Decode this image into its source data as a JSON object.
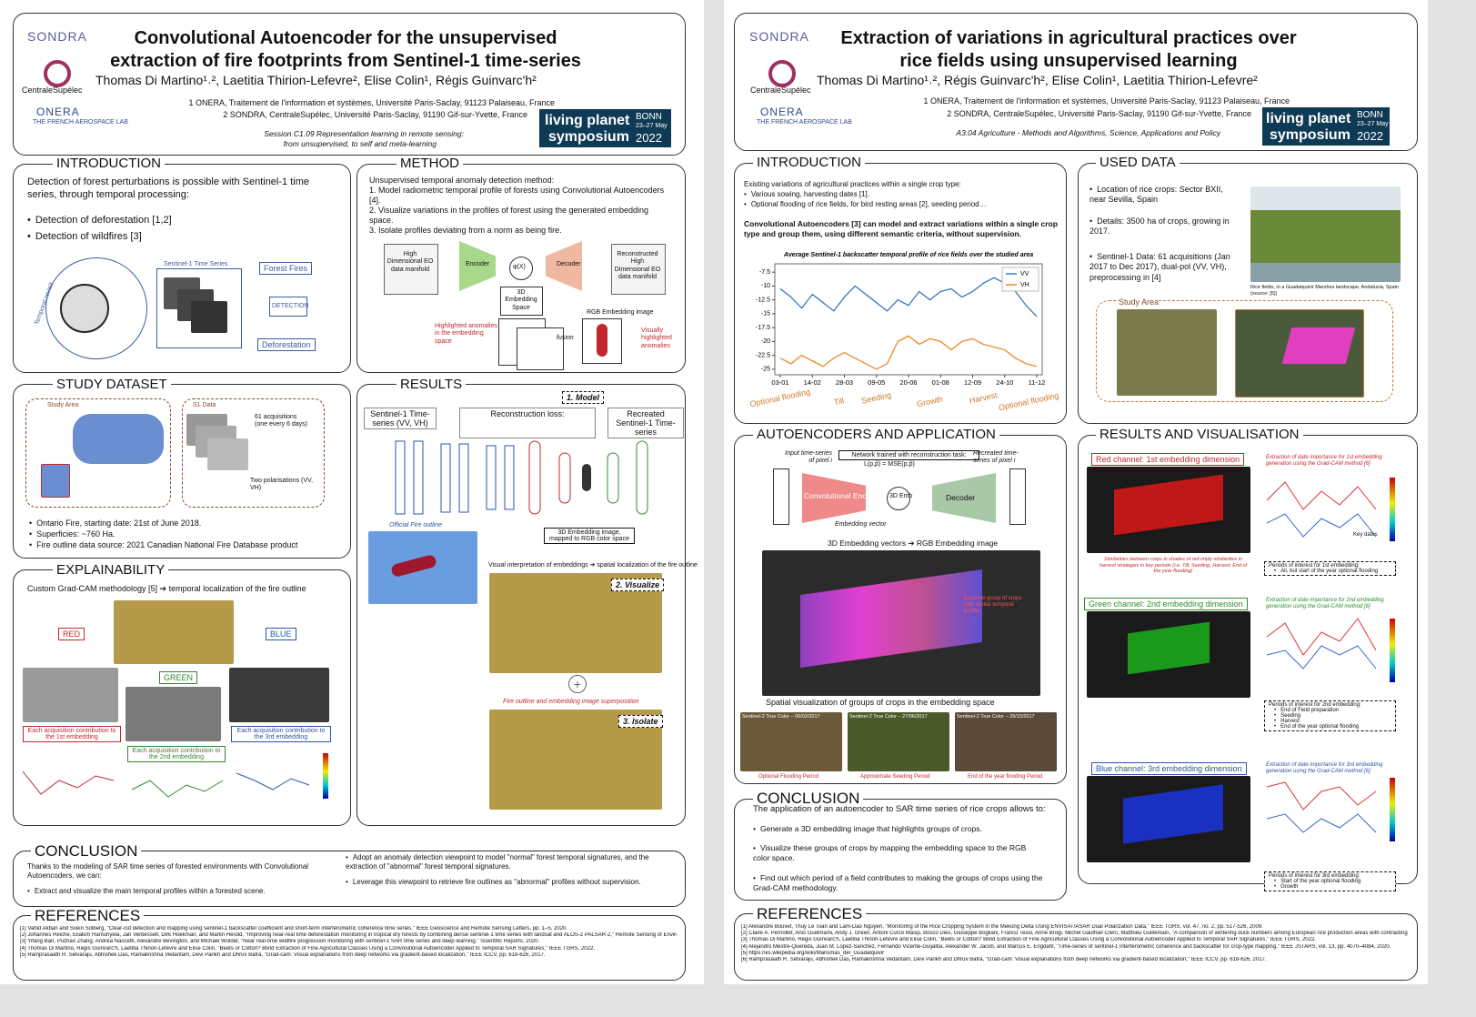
{
  "left": {
    "logos": [
      "SONDRA",
      "CentraleSupélec",
      "ONERA",
      "THE FRENCH AEROSPACE LAB"
    ],
    "title": [
      "Convolutional Autoencoder for the unsupervised",
      "extraction of fire footprints from Sentinel-1 time-series"
    ],
    "authors": "Thomas Di Martino¹˒², Laetitia Thirion-Lefevre², Elise Colin¹, Régis Guinvarc'h²",
    "affiliations": [
      "1 ONERA, Traitement de l'information et systèmes, Université Paris-Saclay, 91123 Palaiseau, France",
      "2 SONDRA, CentraleSupélec, Université Paris-Saclay, 91190 Gif-sur-Yvette, France"
    ],
    "session": [
      "Session C1.09 Representation learning in remote sensing:",
      "from unsupervised, to self and meta-learning"
    ],
    "badge": [
      "living planet",
      "symposium",
      "BONN",
      "23–27 May",
      "2022"
    ],
    "introduction": {
      "heading": "INTRODUCTION",
      "text": "Detection of forest perturbations is possible with Sentinel-1 time series, through temporal processing:",
      "bullets": [
        "Detection of deforestation [1,2]",
        "Detection of wildfires [3]"
      ],
      "figure": [
        "Sentinel-1 Time Series",
        "Forest Fires",
        "DETECTION",
        "Deforestation",
        "Temporal revisit"
      ]
    },
    "method": {
      "heading": "METHOD",
      "lines": [
        "Unsupervised temporal anomaly detection method:",
        "1. Model radiometric temporal profile of forests using Convolutional Autoencoders [4].",
        "2. Visualize variations in the profiles of forest using the generated embedding space.",
        "3. Isolate profiles deviating from a norm as being fire."
      ],
      "figure": [
        "High Dimensional EO data manifold",
        "Encoder",
        "φ(X)",
        "Decoder",
        "Reconstructed High Dimensional EO data manifold",
        "3D Embedding Space",
        "RGB Embedding image",
        "Highlighted anomalies in the embedding space",
        "fusion",
        "Visually highlighted anomalies"
      ]
    },
    "study_dataset": {
      "heading": "STUDY DATASET",
      "figure": [
        "Study Area",
        "S1 Data",
        "61 acquisitions (one every 6 days)",
        "Two polarisations (VV, VH)"
      ],
      "bullets": [
        "Ontario Fire, starting date: 21st of June 2018.",
        "Superficies: ~760 Ha.",
        "Fire outline data source: 2021 Canadian National Fire Database product"
      ]
    },
    "explainability": {
      "heading": "EXPLAINABILITY",
      "text": "Custom Grad-CAM methodology [5] ➔ temporal localization of the fire outline",
      "channels": [
        "RED",
        "GREEN",
        "BLUE"
      ],
      "captions": [
        "Each acquisition contribution to the 1st embedding",
        "Each acquisition contribution to the 2nd embedding",
        "Each acquisition contribution to the 3rd embedding"
      ]
    },
    "results": {
      "heading": "RESULTS",
      "steps": [
        "1. Model",
        "2. Visualize",
        "3. Isolate"
      ],
      "figure": [
        "Sentinel-1 Time-series (VV, VH)",
        "Reconstruction loss:",
        "Recreated Sentinel-1 Time-series",
        "Official Fire outline",
        "3D Embedding image, mapped to RGB color space",
        "Visual interpretation of embeddings ➔ spatial localization of the fire outline",
        "Fire outline and embedding image superposition"
      ]
    },
    "conclusion": {
      "heading": "CONCLUSION",
      "text": "Thanks to the modeling of SAR time series of forested environments with Convolutional Autoencoders, we can:",
      "bullets": [
        "Extract and visualize the main temporal profiles within a forested scene.",
        "Adopt an anomaly detection viewpoint to model \"normal\" forest temporal signatures, and the extraction of \"abnormal\" forest temporal signatures.",
        "Leverage this viewpoint to retrieve fire outlines as \"abnormal\" profiles without supervision."
      ]
    },
    "references": {
      "heading": "REFERENCES",
      "items": [
        "[1] Vahid Akbari and Svein Solberg, \"Clear-cut detection and mapping using sentinel-1 backscatter coefficient and short-term interferometric coherence time series,\" IEEE Geoscience and Remote Sensing Letters, pp. 1–5, 2020.",
        "[2] Johannes Reiche, Eliakim Hamunyela, Jan Verbesselt, Dirk Hoekman, and Martin Herold, \"Improving near-real time deforestation monitoring in tropical dry forests by combining dense sentinel-1 time series with landsat and ALOS-2 PALSAR-2,\" Remote Sensing of Environment, 2018.",
        "[3] Yifang Ban, Puzhao Zhang, Andrea Nascetti, Alexandre Bevington, and Michael Wulder, \"Near real-time wildfire progression monitoring with sentinel-1 SAR time series and deep learning,\" Scientific Reports, 2020.",
        "[4] Thomas Di Martino, Régis Guinvarc'h, Laetitia Thirion-Lefevre and Elise Colin, \"Beets or Cotton? Blind Extraction of Fine Agricultural Classes Using a Convolutional Autoencoder Applied to Temporal SAR Signatures,\" IEEE TGRS, 2022.",
        "[5] Ramprasaath R. Selvaraju, Abhishek Das, Ramakrishna Vedantam, Devi Parikh and Dhruv Batra, \"Grad-cam: Visual explanations from deep networks via gradient-based localization,\" IEEE ICCV, pp. 618-626, 2017."
      ]
    }
  },
  "right": {
    "logos": [
      "SONDRA",
      "CentraleSupélec",
      "ONERA",
      "THE FRENCH AEROSPACE LAB"
    ],
    "title": [
      "Extraction of variations in agricultural practices over",
      "rice fields using unsupervised learning"
    ],
    "authors": "Thomas Di Martino¹˒², Régis Guinvarc'h², Elise Colin¹, Laetitia Thirion-Lefevre²",
    "affiliations": [
      "1 ONERA, Traitement de l'information et systèmes, Université Paris-Saclay, 91123 Palaiseau, France",
      "2 SONDRA, CentraleSupélec, Université Paris-Saclay, 91190 Gif-sur-Yvette, France"
    ],
    "session": "A3.04 Agriculture - Methods and Algorithms, Science, Applications and Policy",
    "badge": [
      "living planet",
      "symposium",
      "BONN",
      "23–27 May",
      "2022"
    ],
    "introduction": {
      "heading": "INTRODUCTION",
      "text": "Existing variations of agricultural practices within a single crop type:",
      "bullets": [
        "Various sowing, harvesting dates [1].",
        "Optional flooding of rice fields, for bird resting areas [2], seeding period…"
      ],
      "paragraph": "Convolutional Autoencoders [3] can model and extract variations within a single crop type and group them, using different semantic criteria, without supervision.",
      "chart": {
        "type": "line",
        "title": "Average Sentinel-1 backscatter temporal profile of rice fields over the studied area",
        "categories": [
          "03-01",
          null,
          null,
          "14-02",
          null,
          null,
          "28-03",
          null,
          null,
          "09-05",
          null,
          null,
          "20-06",
          null,
          null,
          "01-08",
          null,
          null,
          "12-09",
          null,
          null,
          "24-10",
          null,
          null,
          "11-12"
        ],
        "series": [
          {
            "name": "VV",
            "color": "#3a78c2",
            "values": [
              -10.5,
              -12,
              -14,
              -11.5,
              -13,
              -14.5,
              -12,
              -10,
              -11.5,
              -13,
              -14.5,
              -12.5,
              -13.5,
              -11,
              -12.5,
              -11,
              -10.5,
              -12,
              -11,
              -9.5,
              -8.5,
              -9.5,
              -11,
              -13.5,
              -15.5
            ]
          },
          {
            "name": "VH",
            "color": "#f0882a",
            "values": [
              -23,
              -24,
              -22.5,
              -23.5,
              -24.5,
              -23,
              -22,
              -23,
              -24,
              -25,
              -24,
              -20,
              -19,
              -20.5,
              -19.5,
              -20,
              -21.5,
              -20,
              -19.5,
              -20.5,
              -21,
              -21.5,
              -23,
              -24,
              -24.5
            ]
          }
        ],
        "ylim": [
          -26,
          -6
        ],
        "yticks": [
          -7.5,
          -10,
          -12.5,
          -15,
          -17.5,
          -20,
          -22.5,
          -25
        ],
        "annotations": [
          "Optional flooding",
          "Till",
          "Seeding",
          "Growth",
          "Harvest",
          "Optional flooding"
        ],
        "legend": "top-right"
      }
    },
    "used_data": {
      "heading": "USED DATA",
      "bullets": [
        "Location of rice crops: Sector BXII, near Sevilla, Spain",
        "Details: 3500 ha of crops, growing in 2017.",
        "Sentinel-1 Data: 61 acquisitions (Jan 2017 to Dec 2017), dual-pol (VV, VH), preprocessing in [4]"
      ],
      "caption": "Rice fields, in a Guadalquivir Marshes landscape, Andalucia, Spain (source: [5])",
      "study_area": "Study Area"
    },
    "autoencoders": {
      "heading": "AUTOENCODERS AND APPLICATION",
      "figure": [
        "Network trained with reconstruction task:",
        "L(p,p̂) = MSE(p,p̂)",
        "Input time-series of pixel i",
        "Recreated time-series of pixel i",
        "Convolutional Encoder",
        "3D Emb",
        "Decoder",
        "Embedding vector",
        "3D Embedding vectors ➔ RGB Embedding image",
        "Example group of crops with similar temporal profiles"
      ],
      "caption": "Spatial visualization of groups of crops in the embedding space",
      "panels": [
        "Sentinel-2 True Color – 06/02/2017",
        "Sentinel-2 True Color – 27/06/2017",
        "Sentinel-2 True Color – 29/10/2017"
      ],
      "periods": [
        "Optional Flooding Period",
        "Approximate Seeding Period",
        "End of the year flooding Period"
      ]
    },
    "results": {
      "heading": "RESULTS AND VISUALISATION",
      "channels": [
        "Red channel: 1st embedding dimension",
        "Green channel: 2nd embedding dimension",
        "Blue channel: 3rd embedding dimension"
      ],
      "extraction": [
        "Extraction of date importance for 1st embedding generation using the Grad-CAM method [6]",
        "Extraction of date importance for 2nd embedding generation using the Grad-CAM method [6]",
        "Extraction of date importance for 3rd embedding generation using the Grad-CAM method [6]"
      ],
      "similarity": "Similarities between crops in shades of red imply similarities in harvest strategies in key periods (i.e. Till, Seeding, Harvest, End of the year flooding)",
      "periods": [
        {
          "title": "Periods of interest for 1st embedding:",
          "items": [
            "All, but start of the year optional flooding"
          ]
        },
        {
          "title": "Periods of interest for 2nd embedding:",
          "items": [
            "End of Field preparation",
            "Seeding",
            "Harvest",
            "End of the year optional flooding"
          ]
        },
        {
          "title": "Periods of interest for 3rd embedding:",
          "items": [
            "Start of the year optional flooding",
            "Growth"
          ]
        }
      ],
      "key_dates": "Key dates"
    },
    "conclusion": {
      "heading": "CONCLUSION",
      "text": "The application of an autoencoder to SAR time series of rice crops allows to:",
      "bullets": [
        "Generate a 3D embedding image that highlights groups of crops.",
        "Visualize these groups of crops by mapping the embedding space to the RGB color space.",
        "Find out which period of a field contributes to making the groups of crops using the Grad-CAM methodology."
      ]
    },
    "references": {
      "heading": "REFERENCES",
      "items": [
        "[1] Alexandre Bouvet, Thuy Le Toan and Lam-Dao Nguyen, \"Monitoring of the Rice Cropping System in the Mekong Delta Using ENVISAT/ASAR Dual Polarization Data,\" IEEE TGRS, vol. 47, no. 2, pp. 517-526, 2009.",
        "[2] Claire A. Pernollet, Anis Guelmami, Andy J. Green, Antoni Curcó Masip, Bosco Dies, Giuseppe Bogliani, Franco Tesio, Anne Brogi, Michel Gauthier-Clerc, Matthieu Guillemain, \"A comparison of wintering duck numbers among European rice production areas with contrasting flooding regimes,\" Biological Conservation, 2015.",
        "[3] Thomas Di Martino, Régis Guinvarc'h, Laetitia Thirion-Lefevre and Elise Colin, \"Beets or Cotton? Blind Extraction of Fine Agricultural Classes Using a Convolutional Autoencoder Applied to Temporal SAR Signatures,\" IEEE TGRS, 2022.",
        "[4] Alejandro Mestre-Quereda, Juan M. Lopez-Sanchez, Fernando Vicente-Guijalba, Alexander W. Jacob, and Marcus E. Engdahl, \"Time-series of sentinel-1 interferometric coherence and backscatter for crop-type mapping,\" IEEE JSTARS, vol. 13, pp. 4070–4084, 2020.",
        "[5] https://es.wikipedia.org/wiki/Marismas_del_Guadalquivir",
        "[6] Ramprasaath R. Selvaraju, Abhishek Das, Ramakrishna Vedantam, Devi Parikh and Dhruv Batra, \"Grad-cam: Visual explanations from deep networks via gradient-based localization,\" IEEE ICCV, pp. 618-626, 2017."
      ]
    }
  }
}
